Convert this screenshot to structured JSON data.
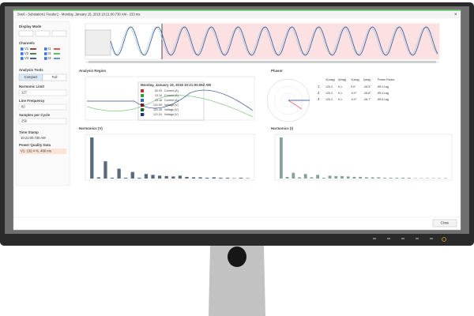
{
  "window": {
    "title": "Sve6 - Substation1 Feeder1 - Monday, January 15, 2018 10:21:00.730 AM - 233 ms",
    "close": "Close"
  },
  "left_panel": {
    "display_mode": "Display Mode",
    "channels_heading": "Channels",
    "channels": [
      {
        "name": "V1",
        "color": "#8b1a1a"
      },
      {
        "name": "I1",
        "color": "#e03030"
      },
      {
        "name": "V2",
        "color": "#1f6b2a"
      },
      {
        "name": "I2",
        "color": "#3cb043"
      },
      {
        "name": "V3",
        "color": "#1a3a8b"
      },
      {
        "name": "I3",
        "color": "#3a78d8"
      }
    ],
    "analysis_tools": "Analysis Tools",
    "buttons": [
      "Compact",
      "Full"
    ],
    "harmonic_limit": {
      "label": "Harmonic Limit",
      "value": "127"
    },
    "line_frequency": {
      "label": "Line Frequency",
      "value": "60"
    },
    "samples_per_cycle": {
      "label": "Samples per Cycle",
      "value": "256"
    },
    "time_stamp": {
      "label": "Time Stamp",
      "value": "10:21:00.730 AM"
    },
    "power_quality": {
      "label": "Power Quality Data",
      "value": "V1: 132.4 %, 466 ms"
    }
  },
  "analysis_region": {
    "title": "Analysis Region",
    "tooltip": {
      "time": "Monday, January 15, 2018 10:21:00.052 AM",
      "rows": [
        {
          "channel": "I1",
          "value": "52.03",
          "unit": "Current (A)",
          "color": "#e03030"
        },
        {
          "channel": "I2",
          "value": "13.10",
          "unit": "Current (A)",
          "color": "#3cb043"
        },
        {
          "channel": "I3",
          "value": "13.18",
          "unit": "Current (A)",
          "color": "#3a78d8"
        },
        {
          "channel": "V1",
          "value": "131.09",
          "unit": "Voltage (V)",
          "color": "#8b1a1a"
        },
        {
          "channel": "V2",
          "value": "121.35",
          "unit": "Voltage (V)",
          "color": "#1f6b2a"
        },
        {
          "channel": "V3",
          "value": "121.24",
          "unit": "Voltage (V)",
          "color": "#1a3a8b"
        }
      ]
    }
  },
  "phasor": {
    "title": "Phasor",
    "headers": [
      "V(mag)",
      "I(mag)",
      "V(ang)",
      "I(ang)",
      "Power Factor"
    ],
    "rows": [
      {
        "label": "1",
        "color": "#e03030",
        "cells": [
          "120.3",
          "0.1",
          "0.0°",
          "-26.5°",
          "89.3 Lag"
        ]
      },
      {
        "label": "2",
        "color": "#3cb043",
        "cells": [
          "120.3",
          "0.1",
          "-0.0°",
          "-26.6°",
          "89.4 Lag"
        ]
      },
      {
        "label": "3",
        "color": "#3a78d8",
        "cells": [
          "120.3",
          "0.1",
          "-0.0°",
          "-26.7°",
          "89.5 Lag"
        ]
      }
    ]
  },
  "harmonics_v": {
    "title": "Harmonics (V)",
    "ylim": [
      0,
      100
    ],
    "color": "#5a6b7b",
    "values": [
      100,
      3,
      42,
      2,
      24,
      2,
      16,
      2,
      11,
      9,
      7,
      6,
      5,
      7,
      4,
      3,
      3,
      2,
      3,
      2,
      2,
      1,
      2,
      1
    ]
  },
  "harmonics_i": {
    "title": "Harmonics (I)",
    "ylim": [
      0,
      100
    ],
    "color": "#8aa0a0",
    "values": [
      100,
      4,
      14,
      3,
      11,
      3,
      9,
      2,
      7,
      6,
      6,
      5,
      4,
      4,
      3,
      3,
      3,
      2,
      2,
      2,
      2,
      2,
      1,
      1,
      1,
      1,
      1,
      1
    ]
  }
}
